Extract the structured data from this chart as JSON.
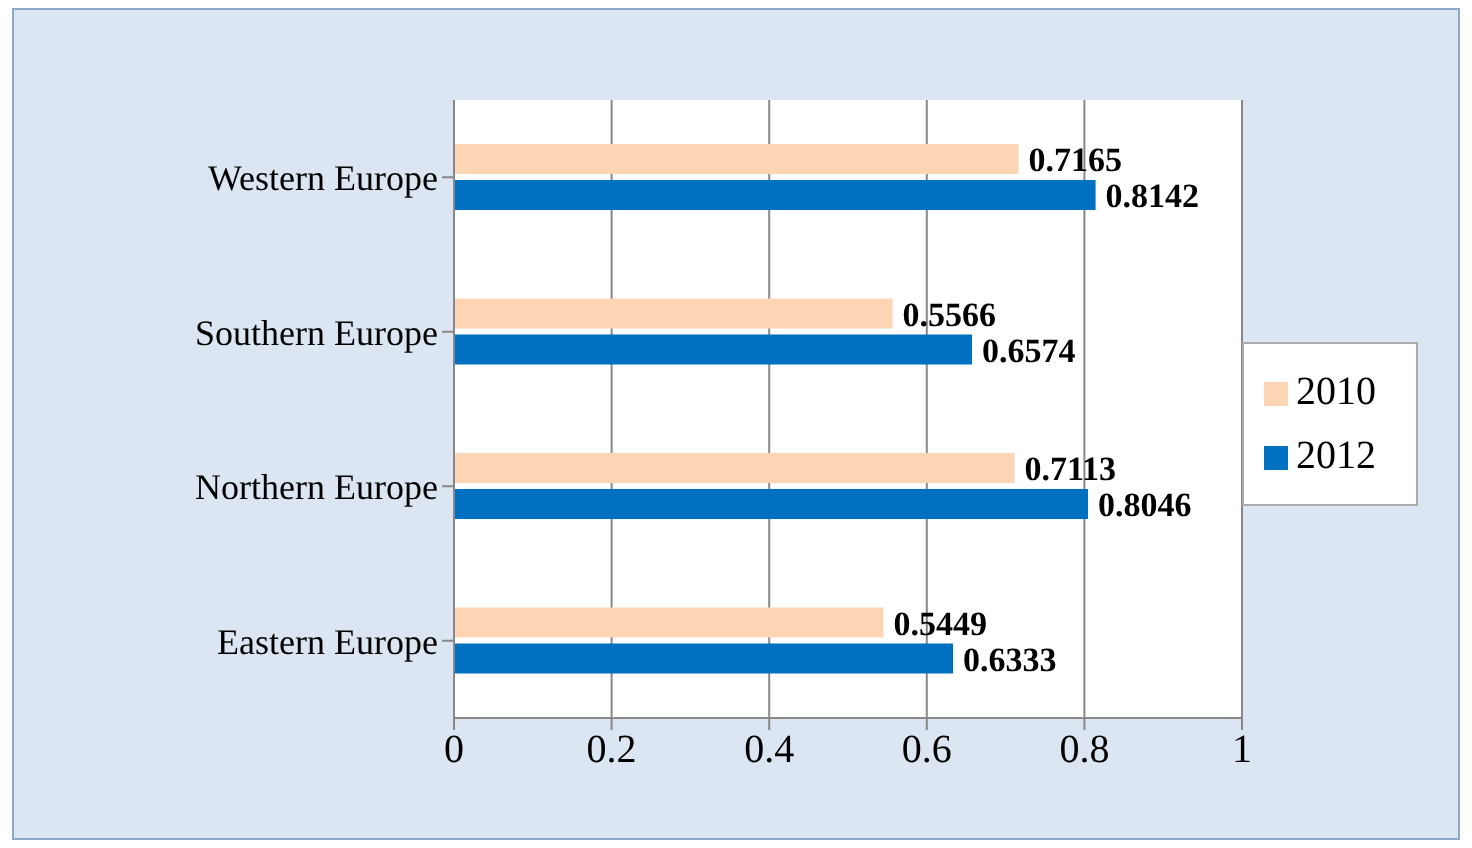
{
  "chart_data": {
    "type": "bar",
    "orientation": "horizontal",
    "categories": [
      "Western Europe",
      "Southern Europe",
      "Northern Europe",
      "Eastern Europe"
    ],
    "series": [
      {
        "name": "2010",
        "color": "#fcd5b5",
        "values": [
          0.7165,
          0.5566,
          0.7113,
          0.5449
        ]
      },
      {
        "name": "2012",
        "color": "#0070c0",
        "values": [
          0.8142,
          0.6574,
          0.8046,
          0.6333
        ]
      }
    ],
    "xlim": [
      0,
      1
    ],
    "xticks": [
      0,
      0.2,
      0.4,
      0.6,
      0.8,
      1
    ],
    "grid": "x",
    "legend": "right",
    "data_labels": true
  }
}
